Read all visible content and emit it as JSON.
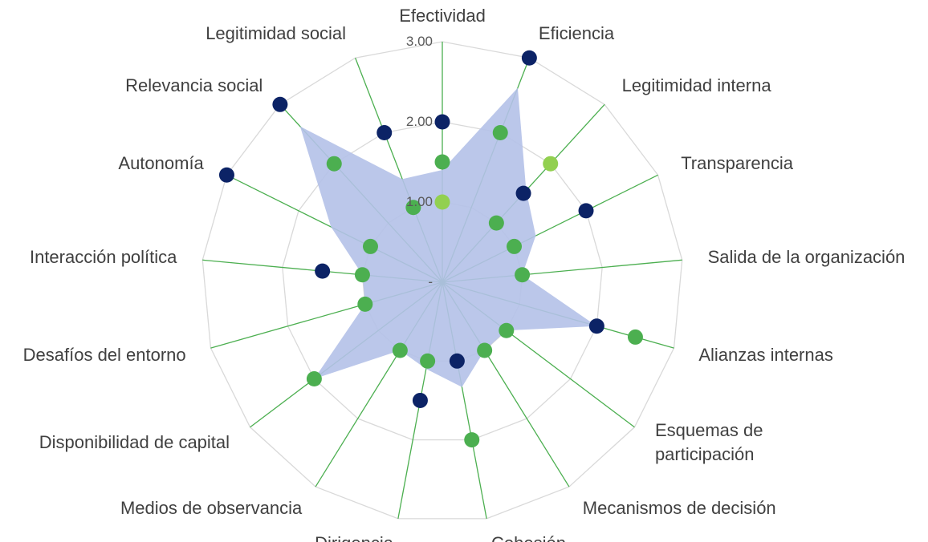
{
  "chart_data": {
    "type": "radar",
    "categories": [
      "Efectividad",
      "Eficiencia",
      "Legitimidad interna",
      "Transparencia",
      "Salida de la organización",
      "Alianzas internas",
      "Esquemas de participación",
      "Mecanismos de decisión",
      "Cohesión",
      "Dirigencia",
      "Medios de observancia",
      "Disponibilidad de capital",
      "Desafíos del entorno",
      "Interacción política",
      "Autonomía",
      "Relevancia social",
      "Legitimidad social"
    ],
    "series": [
      {
        "color": "#b4c1e8",
        "fill": true,
        "values": [
          1.4,
          2.6,
          1.55,
          1.3,
          1.0,
          2.0,
          1.0,
          1.0,
          1.33,
          1.1,
          1.0,
          2.0,
          1.0,
          1.0,
          1.55,
          2.63,
          1.38
        ]
      },
      {
        "color": "#0c2366",
        "values": [
          2,
          3,
          1.5,
          2,
          null,
          2,
          null,
          null,
          1,
          1.5,
          null,
          null,
          null,
          1.5,
          3,
          3,
          2
        ]
      },
      {
        "color": "#4caf50",
        "values": [
          1.5,
          2,
          1,
          1,
          1,
          2.5,
          1,
          1,
          2,
          1,
          1,
          2,
          1,
          1,
          1,
          2,
          1
        ]
      },
      {
        "color": "#92d050",
        "values": [
          1,
          null,
          2,
          null,
          null,
          null,
          null,
          null,
          null,
          null,
          null,
          null,
          null,
          null,
          null,
          null,
          null
        ]
      }
    ],
    "ylim": [
      0,
      3
    ],
    "yticks": [
      {
        "value": 0,
        "label": "-"
      },
      {
        "value": 1,
        "label": "1.00"
      },
      {
        "value": 2,
        "label": "2.00"
      },
      {
        "value": 3,
        "label": "3.00"
      }
    ],
    "grid": true
  }
}
